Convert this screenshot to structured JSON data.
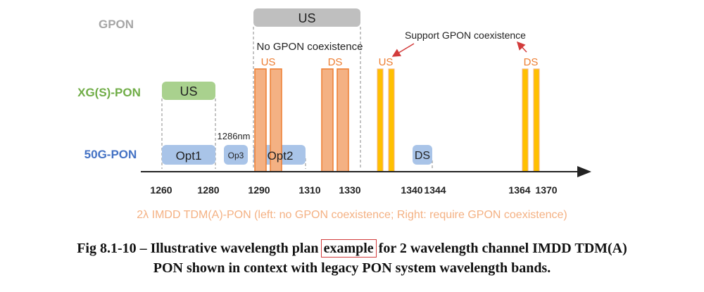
{
  "rows": {
    "gpon": "GPON",
    "xgspon": "XG(S)-PON",
    "pon50g": "50G-PON"
  },
  "gpon_band": {
    "label": "US",
    "note": "No GPON coexistence"
  },
  "xgspon_band": {
    "label": "US"
  },
  "pon50g_bands": {
    "opt1": "Opt1",
    "op3": "Op3",
    "opt2": "Opt2",
    "ds": "DS",
    "marker": "1286nm"
  },
  "imdd_labels": {
    "us_left": "US",
    "ds_left": "DS",
    "us_right": "US",
    "ds_right": "DS"
  },
  "annotation": "Support GPON coexistence",
  "axis_ticks": [
    "1260",
    "1280",
    "1290",
    "1310",
    "1330",
    "1340",
    "1344",
    "1364",
    "1370"
  ],
  "subtitle": "2λ IMDD TDM(A)-PON (left: no GPON coexistence;  Right: require GPON coexistence)",
  "caption": {
    "line1_pre": "Fig 8.1-10 – Illustrative wavelength plan ",
    "line1_boxed": "example",
    "line1_post": " for 2 wavelength channel IMDD TDM(A)",
    "line2": "PON shown in context with legacy PON system wavelength bands."
  },
  "colors": {
    "gpon": "#a6a6a6",
    "xgspon": "#70ad47",
    "pon50g": "#4472c4",
    "pon50g_fill": "#a9c4e8",
    "imdd_fill": "#f4b183",
    "imdd_text": "#ed7d31",
    "imdd_right_fill": "#ffc000",
    "arrow": "#d23b3b"
  }
}
